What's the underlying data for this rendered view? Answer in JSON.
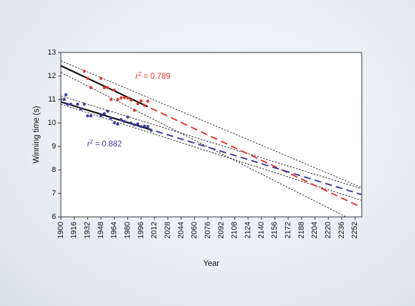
{
  "chart_data": {
    "type": "scatter",
    "title": "",
    "xlabel": "Year",
    "ylabel": "Winning time (s)",
    "xlim": [
      1900,
      2260
    ],
    "ylim": [
      6,
      13
    ],
    "xticks": [
      1900,
      1916,
      1932,
      1948,
      1964,
      1980,
      1996,
      2012,
      2028,
      2044,
      2060,
      2076,
      2092,
      2108,
      2124,
      2140,
      2156,
      2172,
      2188,
      2204,
      2220,
      2236,
      2252
    ],
    "yticks": [
      6,
      7,
      8,
      9,
      10,
      11,
      12,
      13
    ],
    "grid": false,
    "legend": "none",
    "colors": {
      "men": "#3c3ca0",
      "women": "#e03a2b",
      "interval": "#111111",
      "frame": "#333333"
    },
    "series": [
      {
        "key": "women",
        "r2_text": "0.789",
        "color": "#e03a2b",
        "points": [
          [
            1928,
            12.2
          ],
          [
            1932,
            11.9
          ],
          [
            1936,
            11.5
          ],
          [
            1948,
            11.9
          ],
          [
            1952,
            11.5
          ],
          [
            1956,
            11.5
          ],
          [
            1960,
            11.0
          ],
          [
            1964,
            11.4
          ],
          [
            1968,
            11.0
          ],
          [
            1972,
            11.07
          ],
          [
            1976,
            11.08
          ],
          [
            1980,
            11.06
          ],
          [
            1984,
            10.97
          ],
          [
            1988,
            10.54
          ],
          [
            1992,
            10.82
          ],
          [
            1996,
            10.94
          ],
          [
            2000,
            10.75
          ],
          [
            2004,
            10.93
          ]
        ],
        "fit": {
          "slope": -0.01677,
          "intercept": 44.3
        },
        "fit_solid_until": 2004,
        "fit_extend": [
          1900,
          2260
        ],
        "ci_upper": [
          [
            1900,
            12.65
          ],
          [
            2260,
            7.25
          ]
        ],
        "ci_lower": [
          [
            1900,
            12.15
          ],
          [
            2244,
            5.95
          ]
        ]
      },
      {
        "key": "men",
        "r2_text": "0.882",
        "color": "#3c3ca0",
        "points": [
          [
            1900,
            11.0
          ],
          [
            1904,
            11.0
          ],
          [
            1906,
            11.2
          ],
          [
            1908,
            10.8
          ],
          [
            1912,
            10.8
          ],
          [
            1920,
            10.8
          ],
          [
            1924,
            10.6
          ],
          [
            1928,
            10.8
          ],
          [
            1932,
            10.3
          ],
          [
            1936,
            10.3
          ],
          [
            1948,
            10.3
          ],
          [
            1952,
            10.4
          ],
          [
            1956,
            10.5
          ],
          [
            1960,
            10.2
          ],
          [
            1964,
            10.0
          ],
          [
            1968,
            9.95
          ],
          [
            1972,
            10.14
          ],
          [
            1976,
            10.06
          ],
          [
            1980,
            10.25
          ],
          [
            1984,
            9.99
          ],
          [
            1988,
            9.92
          ],
          [
            1992,
            9.96
          ],
          [
            1996,
            9.84
          ],
          [
            2000,
            9.87
          ],
          [
            2004,
            9.85
          ],
          [
            2008,
            9.69
          ]
        ],
        "fit": {
          "slope": -0.01096,
          "intercept": 31.72
        },
        "fit_solid_until": 2008,
        "fit_extend": [
          1900,
          2260
        ],
        "ci_upper": [
          [
            1900,
            11.15
          ],
          [
            2260,
            7.2
          ]
        ],
        "ci_lower": [
          [
            1900,
            10.8
          ],
          [
            2260,
            6.7
          ]
        ]
      }
    ]
  }
}
